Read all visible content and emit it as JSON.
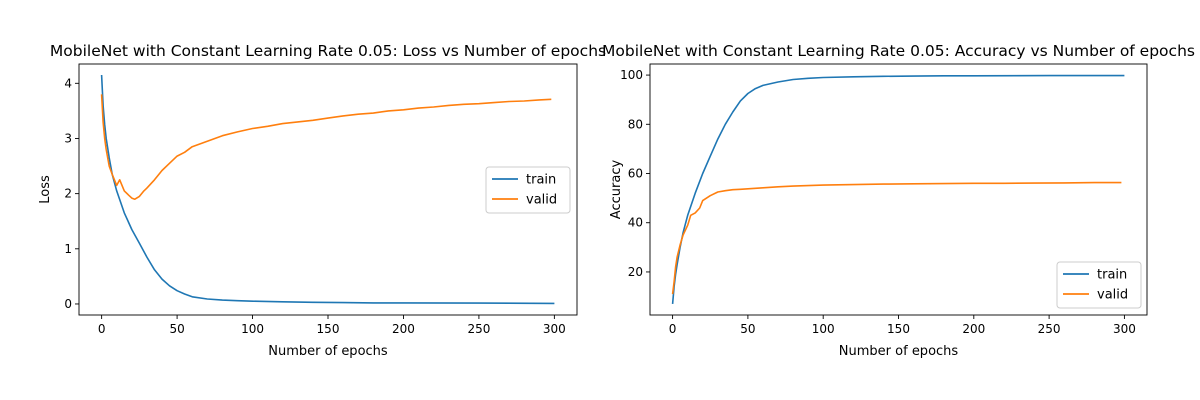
{
  "chart_data": [
    {
      "type": "line",
      "title": "MobileNet with Constant Learning Rate 0.05: Loss vs Number of epochs",
      "xlabel": "Number of epochs",
      "ylabel": "Loss",
      "xlim": [
        -15,
        315
      ],
      "ylim": [
        -0.2,
        4.35
      ],
      "xticks": [
        0,
        50,
        100,
        150,
        200,
        250,
        300
      ],
      "yticks": [
        0,
        1,
        2,
        3,
        4
      ],
      "grid": false,
      "legend": "center-right",
      "series": [
        {
          "name": "train",
          "color": "#1f77b4",
          "x": [
            0,
            1,
            2,
            3,
            5,
            7,
            10,
            15,
            20,
            25,
            30,
            35,
            40,
            45,
            50,
            55,
            60,
            70,
            80,
            90,
            100,
            120,
            140,
            160,
            180,
            200,
            250,
            300
          ],
          "y": [
            4.15,
            3.6,
            3.25,
            3.0,
            2.65,
            2.35,
            2.05,
            1.65,
            1.35,
            1.1,
            0.85,
            0.62,
            0.45,
            0.33,
            0.24,
            0.18,
            0.13,
            0.09,
            0.07,
            0.06,
            0.05,
            0.04,
            0.03,
            0.025,
            0.02,
            0.02,
            0.015,
            0.01
          ]
        },
        {
          "name": "valid",
          "color": "#ff7f0e",
          "x": [
            0,
            1,
            2,
            3,
            5,
            7,
            10,
            12,
            15,
            18,
            20,
            22,
            25,
            28,
            30,
            35,
            40,
            45,
            50,
            55,
            60,
            70,
            80,
            90,
            100,
            110,
            120,
            130,
            140,
            150,
            160,
            170,
            180,
            190,
            200,
            210,
            220,
            230,
            240,
            250,
            260,
            270,
            280,
            290,
            298
          ],
          "y": [
            3.8,
            3.3,
            3.0,
            2.8,
            2.5,
            2.35,
            2.15,
            2.25,
            2.05,
            1.97,
            1.92,
            1.9,
            1.95,
            2.05,
            2.1,
            2.25,
            2.42,
            2.55,
            2.68,
            2.75,
            2.85,
            2.95,
            3.05,
            3.12,
            3.18,
            3.22,
            3.27,
            3.3,
            3.33,
            3.37,
            3.41,
            3.44,
            3.46,
            3.5,
            3.52,
            3.55,
            3.57,
            3.6,
            3.62,
            3.63,
            3.65,
            3.67,
            3.68,
            3.7,
            3.71
          ]
        }
      ]
    },
    {
      "type": "line",
      "title": "MobileNet with Constant Learning Rate 0.05: Accuracy vs Number of epochs",
      "xlabel": "Number of epochs",
      "ylabel": "Accuracy",
      "xlim": [
        -15,
        315
      ],
      "ylim": [
        2.5,
        104.5
      ],
      "xticks": [
        0,
        50,
        100,
        150,
        200,
        250,
        300
      ],
      "yticks": [
        20,
        40,
        60,
        80,
        100
      ],
      "grid": false,
      "legend": "bottom-right",
      "series": [
        {
          "name": "train",
          "color": "#1f77b4",
          "x": [
            0,
            1,
            2,
            3,
            5,
            7,
            10,
            15,
            20,
            25,
            30,
            35,
            40,
            45,
            50,
            55,
            60,
            70,
            80,
            90,
            100,
            120,
            140,
            160,
            180,
            200,
            250,
            300
          ],
          "y": [
            7,
            14,
            19,
            23,
            30,
            36,
            43,
            52,
            60,
            67,
            74,
            80,
            85,
            89.5,
            92.5,
            94.5,
            95.8,
            97.2,
            98.2,
            98.7,
            99.0,
            99.3,
            99.5,
            99.6,
            99.7,
            99.7,
            99.8,
            99.8
          ]
        },
        {
          "name": "valid",
          "color": "#ff7f0e",
          "x": [
            0,
            1,
            2,
            3,
            5,
            7,
            10,
            12,
            15,
            18,
            20,
            25,
            30,
            35,
            40,
            45,
            50,
            55,
            60,
            70,
            80,
            90,
            100,
            120,
            140,
            160,
            180,
            200,
            220,
            240,
            260,
            280,
            298
          ],
          "y": [
            11,
            16,
            22,
            26,
            31,
            35,
            39,
            43,
            44,
            46,
            49,
            51,
            52.5,
            53,
            53.4,
            53.6,
            53.8,
            54,
            54.2,
            54.6,
            54.9,
            55.1,
            55.3,
            55.5,
            55.7,
            55.8,
            55.9,
            56,
            56,
            56.1,
            56.2,
            56.3,
            56.3
          ]
        }
      ]
    }
  ]
}
